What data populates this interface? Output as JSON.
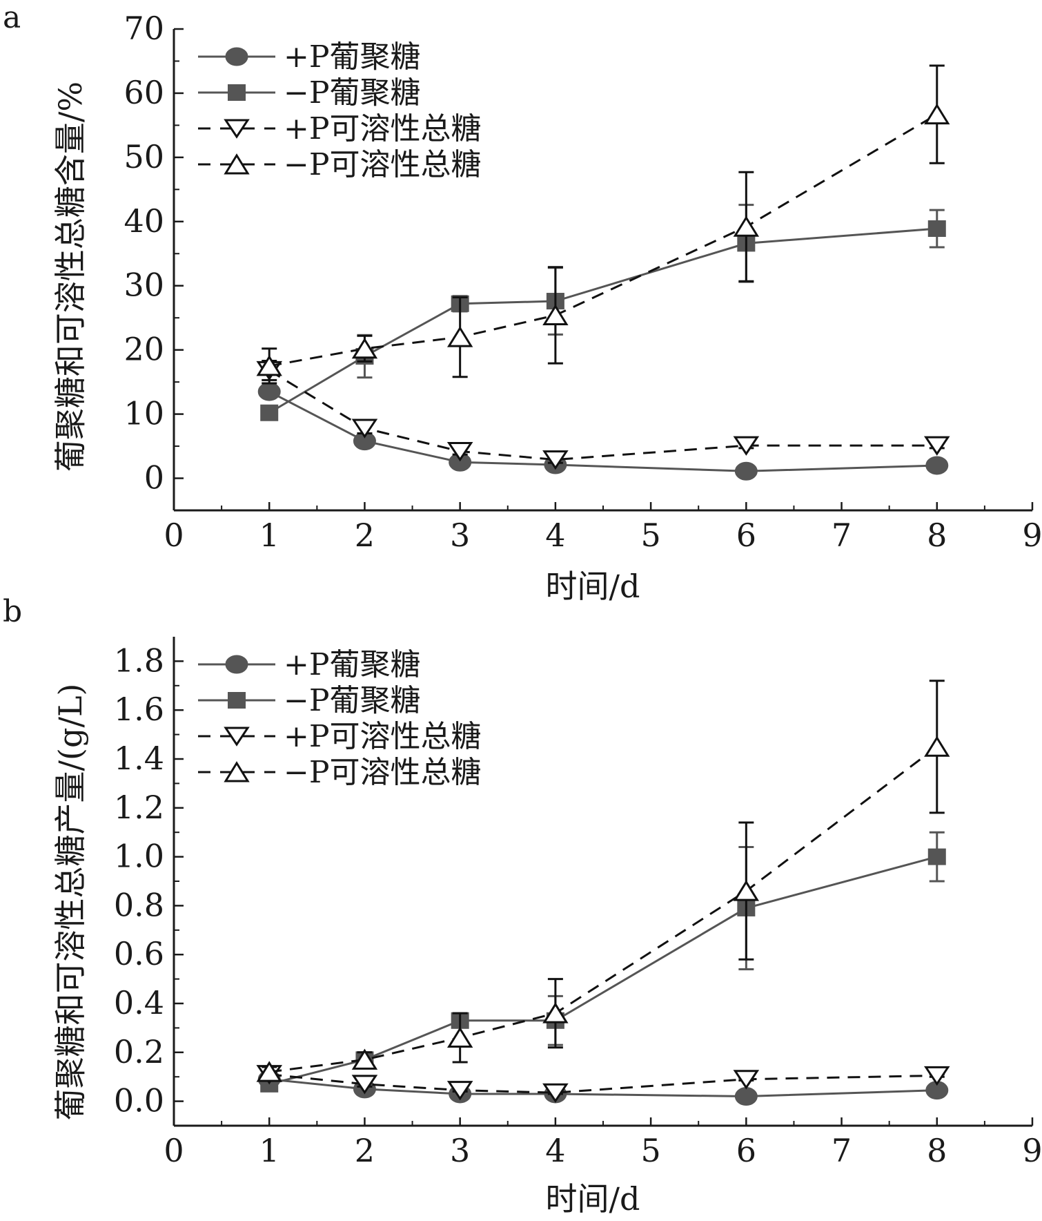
{
  "colors": {
    "glucan_line": "#555555",
    "glucan_marker": "#555555",
    "sugar_line": "#111111",
    "axis": "#1a1a1a",
    "open_marker_fill": "#ffffff"
  },
  "chart_data": [
    {
      "panel": "a",
      "type": "line",
      "xlabel": "时间/d",
      "ylabel": "葡聚糖和可溶性总糖含量/%",
      "xlim": [
        0,
        9
      ],
      "ylim": [
        -5,
        70
      ],
      "xticks": [
        0,
        1,
        2,
        3,
        4,
        5,
        6,
        7,
        8,
        9
      ],
      "yticks": [
        0,
        10,
        20,
        30,
        40,
        50,
        60,
        70
      ],
      "grid": false,
      "legend_position": "top-left",
      "series": [
        {
          "name": "+P葡聚糖",
          "marker": "circle",
          "line": "solid",
          "x": [
            1,
            2,
            3,
            4,
            6,
            8
          ],
          "y": [
            13.5,
            5.8,
            2.5,
            2.1,
            1.1,
            2.0
          ],
          "err": [
            0.8,
            0.8,
            0.3,
            0.3,
            0.2,
            0.3
          ]
        },
        {
          "name": "−P葡聚糖",
          "marker": "square",
          "line": "solid",
          "x": [
            1,
            2,
            3,
            4,
            6,
            8
          ],
          "y": [
            10.2,
            19.0,
            27.2,
            27.6,
            36.6,
            38.9
          ],
          "err": [
            0.8,
            3.3,
            1.2,
            5.2,
            6.0,
            2.9
          ]
        },
        {
          "name": "+P可溶性总糖",
          "marker": "triangle-down",
          "line": "dashed",
          "x": [
            1,
            2,
            3,
            4,
            6,
            8
          ],
          "y": [
            16.8,
            7.8,
            4.2,
            2.9,
            5.1,
            5.1
          ],
          "err": [
            1.5,
            0.8,
            0.5,
            0.5,
            0.4,
            0.4
          ]
        },
        {
          "name": "−P可溶性总糖",
          "marker": "triangle-up",
          "line": "dashed",
          "x": [
            1,
            2,
            3,
            4,
            6,
            8
          ],
          "y": [
            17.5,
            20.2,
            22.0,
            25.4,
            39.2,
            56.7
          ],
          "err": [
            2.7,
            2.0,
            6.2,
            7.5,
            8.5,
            7.6
          ]
        }
      ]
    },
    {
      "panel": "b",
      "type": "line",
      "xlabel": "时间/d",
      "ylabel": "葡聚糖和可溶性总糖产量/(g/L)",
      "xlim": [
        0,
        9
      ],
      "ylim": [
        -0.1,
        1.9
      ],
      "xticks": [
        0,
        1,
        2,
        3,
        4,
        5,
        6,
        7,
        8,
        9
      ],
      "yticks": [
        "0.0",
        "0.2",
        "0.4",
        "0.6",
        "0.8",
        "1.0",
        "1.2",
        "1.4",
        "1.6",
        "1.8"
      ],
      "grid": false,
      "legend_position": "top-left",
      "series": [
        {
          "name": "+P葡聚糖",
          "marker": "circle",
          "line": "solid",
          "x": [
            1,
            2,
            3,
            4,
            6,
            8
          ],
          "y": [
            0.09,
            0.05,
            0.03,
            0.03,
            0.02,
            0.045
          ],
          "err": [
            0.01,
            0.01,
            0.005,
            0.005,
            0.005,
            0.005
          ]
        },
        {
          "name": "−P葡聚糖",
          "marker": "square",
          "line": "solid",
          "x": [
            1,
            2,
            3,
            4,
            6,
            8
          ],
          "y": [
            0.07,
            0.17,
            0.33,
            0.33,
            0.79,
            1.0
          ],
          "err": [
            0.01,
            0.03,
            0.02,
            0.1,
            0.25,
            0.1
          ]
        },
        {
          "name": "+P可溶性总糖",
          "marker": "triangle-down",
          "line": "dashed",
          "x": [
            1,
            2,
            3,
            4,
            6,
            8
          ],
          "y": [
            0.11,
            0.07,
            0.045,
            0.035,
            0.09,
            0.105
          ],
          "err": [
            0.01,
            0.01,
            0.005,
            0.005,
            0.005,
            0.005
          ]
        },
        {
          "name": "−P可溶性总糖",
          "marker": "triangle-up",
          "line": "dashed",
          "x": [
            1,
            2,
            3,
            4,
            6,
            8
          ],
          "y": [
            0.12,
            0.17,
            0.26,
            0.36,
            0.86,
            1.45
          ],
          "err": [
            0.02,
            0.03,
            0.1,
            0.14,
            0.28,
            0.27
          ]
        }
      ]
    }
  ]
}
